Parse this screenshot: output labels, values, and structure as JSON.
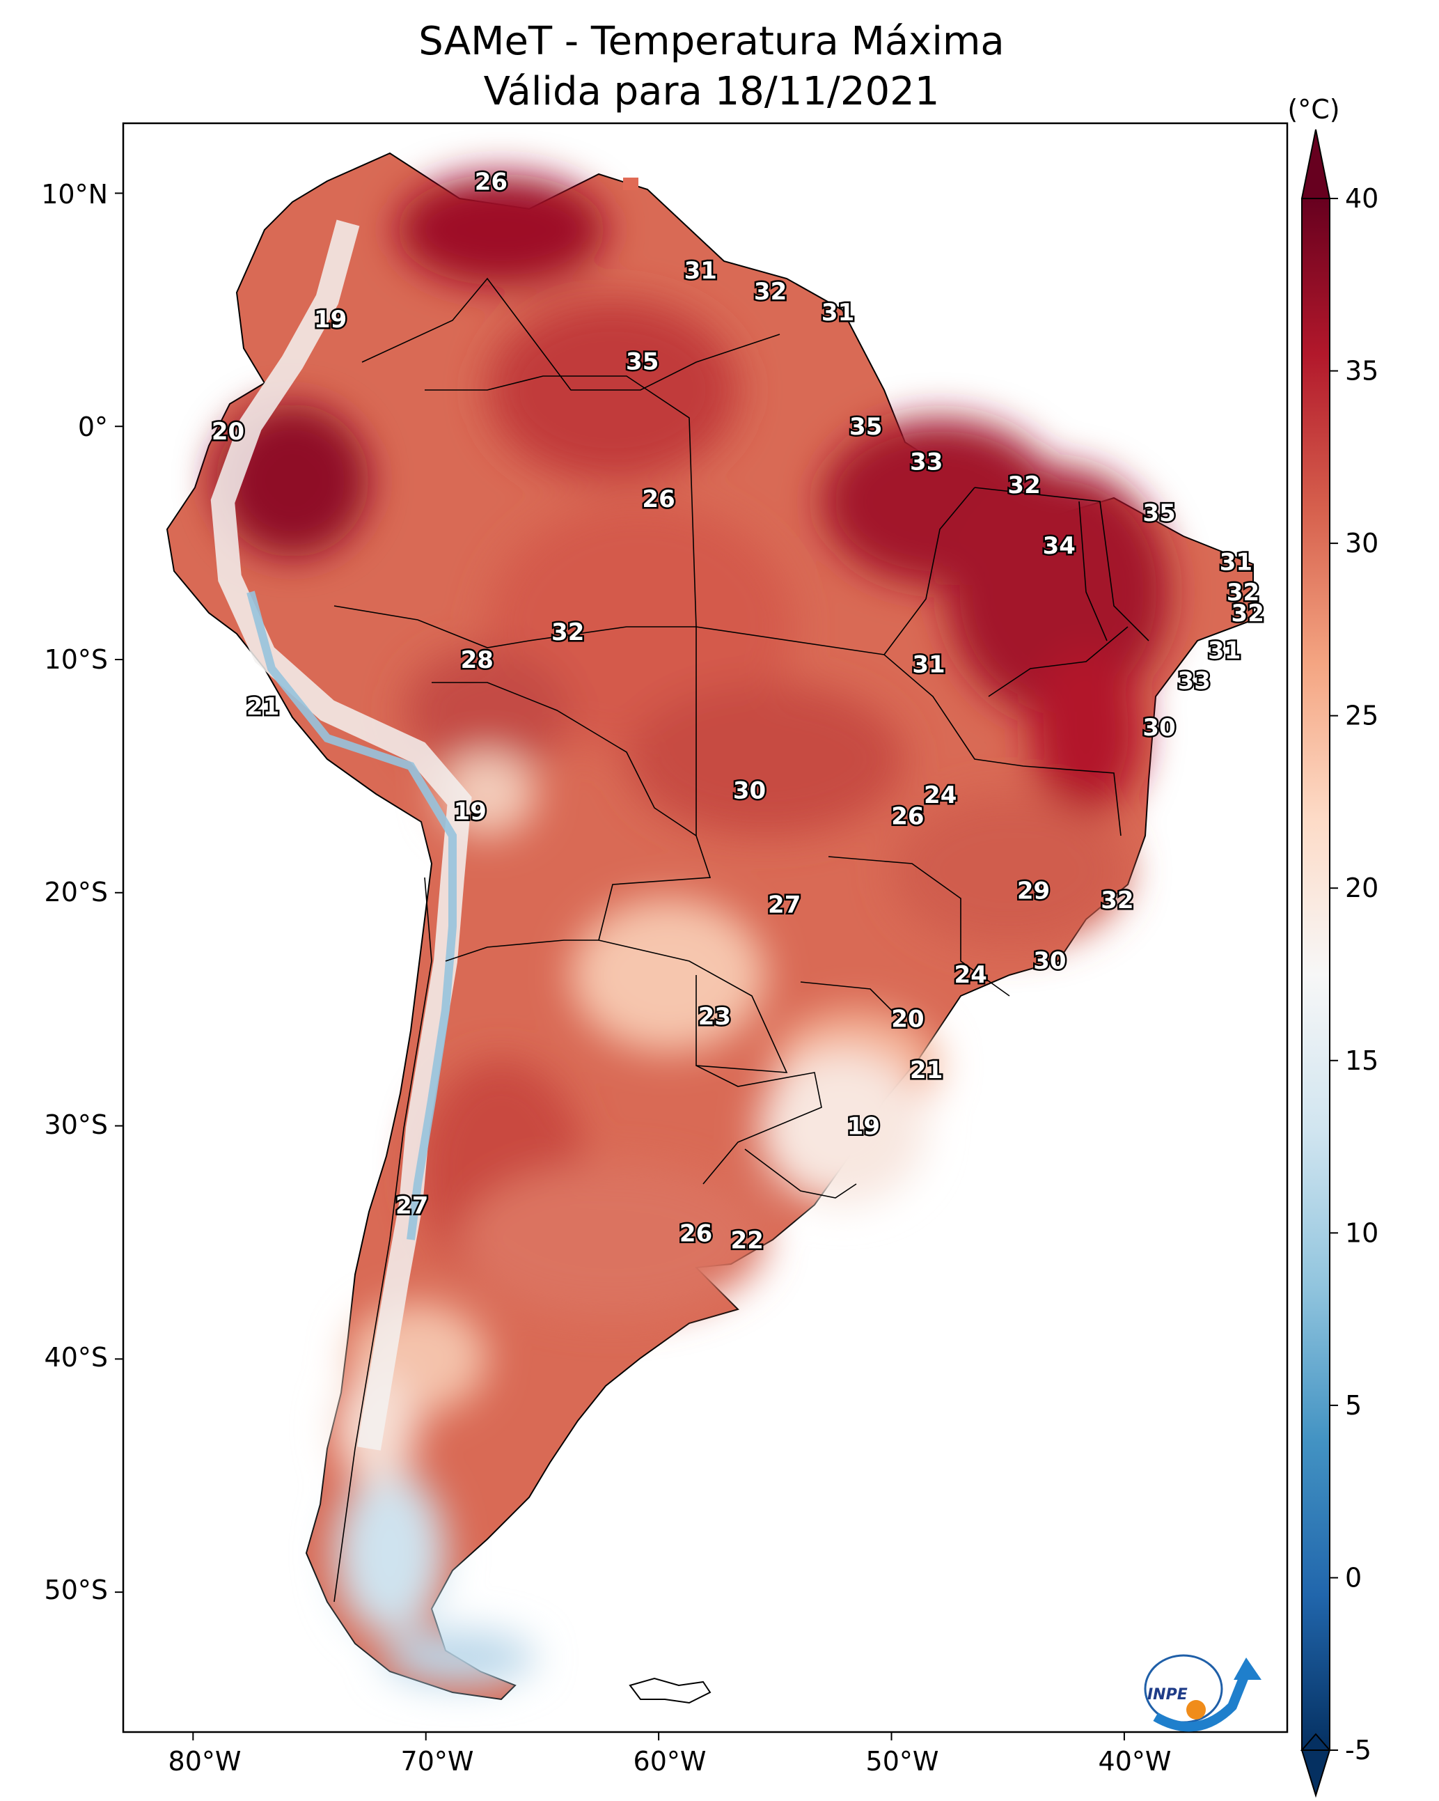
{
  "title": {
    "line1": "SAMeT - Temperatura Máxima",
    "line2": "Válida para 18/11/2021"
  },
  "colorbar": {
    "unit": "(°C)",
    "ticks": [
      "40",
      "35",
      "30",
      "25",
      "20",
      "15",
      "10",
      "5",
      "0",
      "-5"
    ],
    "min": -5,
    "max": 40,
    "colors": [
      "#053061",
      "#2166ac",
      "#4393c3",
      "#92c5de",
      "#d1e5f0",
      "#f7f7f7",
      "#fddbc7",
      "#f4a582",
      "#d6604d",
      "#b2182b",
      "#67001f"
    ]
  },
  "axes": {
    "lat_labels": [
      "10°N",
      "0°",
      "10°S",
      "20°S",
      "30°S",
      "40°S",
      "50°S"
    ],
    "lon_labels": [
      "80°W",
      "70°W",
      "60°W",
      "50°W",
      "40°W"
    ]
  },
  "map_extent": {
    "lon_min": -83,
    "lon_max": -33,
    "lat_min": -56,
    "lat_max": 13
  },
  "stations": [
    {
      "value": "26",
      "lon": -67.2,
      "lat": 10.5
    },
    {
      "value": "31",
      "lon": -58.2,
      "lat": 6.7
    },
    {
      "value": "32",
      "lon": -55.2,
      "lat": 5.8
    },
    {
      "value": "31",
      "lon": -52.3,
      "lat": 4.9
    },
    {
      "value": "19",
      "lon": -74.1,
      "lat": 4.6
    },
    {
      "value": "35",
      "lon": -60.7,
      "lat": 2.8
    },
    {
      "value": "20",
      "lon": -78.5,
      "lat": -0.2
    },
    {
      "value": "35",
      "lon": -51.1,
      "lat": 0.0
    },
    {
      "value": "33",
      "lon": -48.5,
      "lat": -1.5
    },
    {
      "value": "32",
      "lon": -44.3,
      "lat": -2.5
    },
    {
      "value": "26",
      "lon": -60.0,
      "lat": -3.1
    },
    {
      "value": "35",
      "lon": -38.5,
      "lat": -3.7
    },
    {
      "value": "34",
      "lon": -42.8,
      "lat": -5.1
    },
    {
      "value": "31",
      "lon": -35.2,
      "lat": -5.8
    },
    {
      "value": "32",
      "lon": -34.9,
      "lat": -7.1
    },
    {
      "value": "32",
      "lon": -34.7,
      "lat": -8.0
    },
    {
      "value": "32",
      "lon": -63.9,
      "lat": -8.8
    },
    {
      "value": "28",
      "lon": -67.8,
      "lat": -10.0
    },
    {
      "value": "31",
      "lon": -48.4,
      "lat": -10.2
    },
    {
      "value": "31",
      "lon": -35.7,
      "lat": -9.6
    },
    {
      "value": "33",
      "lon": -37.0,
      "lat": -10.9
    },
    {
      "value": "21",
      "lon": -77.0,
      "lat": -12.0
    },
    {
      "value": "30",
      "lon": -38.5,
      "lat": -12.9
    },
    {
      "value": "30",
      "lon": -56.1,
      "lat": -15.6
    },
    {
      "value": "24",
      "lon": -47.9,
      "lat": -15.8
    },
    {
      "value": "26",
      "lon": -49.3,
      "lat": -16.7
    },
    {
      "value": "19",
      "lon": -68.1,
      "lat": -16.5
    },
    {
      "value": "27",
      "lon": -54.6,
      "lat": -20.5
    },
    {
      "value": "29",
      "lon": -43.9,
      "lat": -19.9
    },
    {
      "value": "32",
      "lon": -40.3,
      "lat": -20.3
    },
    {
      "value": "30",
      "lon": -43.2,
      "lat": -22.9
    },
    {
      "value": "24",
      "lon": -46.6,
      "lat": -23.5
    },
    {
      "value": "23",
      "lon": -57.6,
      "lat": -25.3
    },
    {
      "value": "20",
      "lon": -49.3,
      "lat": -25.4
    },
    {
      "value": "21",
      "lon": -48.5,
      "lat": -27.6
    },
    {
      "value": "19",
      "lon": -51.2,
      "lat": -30.0
    },
    {
      "value": "27",
      "lon": -70.6,
      "lat": -33.4
    },
    {
      "value": "26",
      "lon": -58.4,
      "lat": -34.6
    },
    {
      "value": "22",
      "lon": -56.2,
      "lat": -34.9
    }
  ],
  "logo": {
    "text": "INPE"
  }
}
